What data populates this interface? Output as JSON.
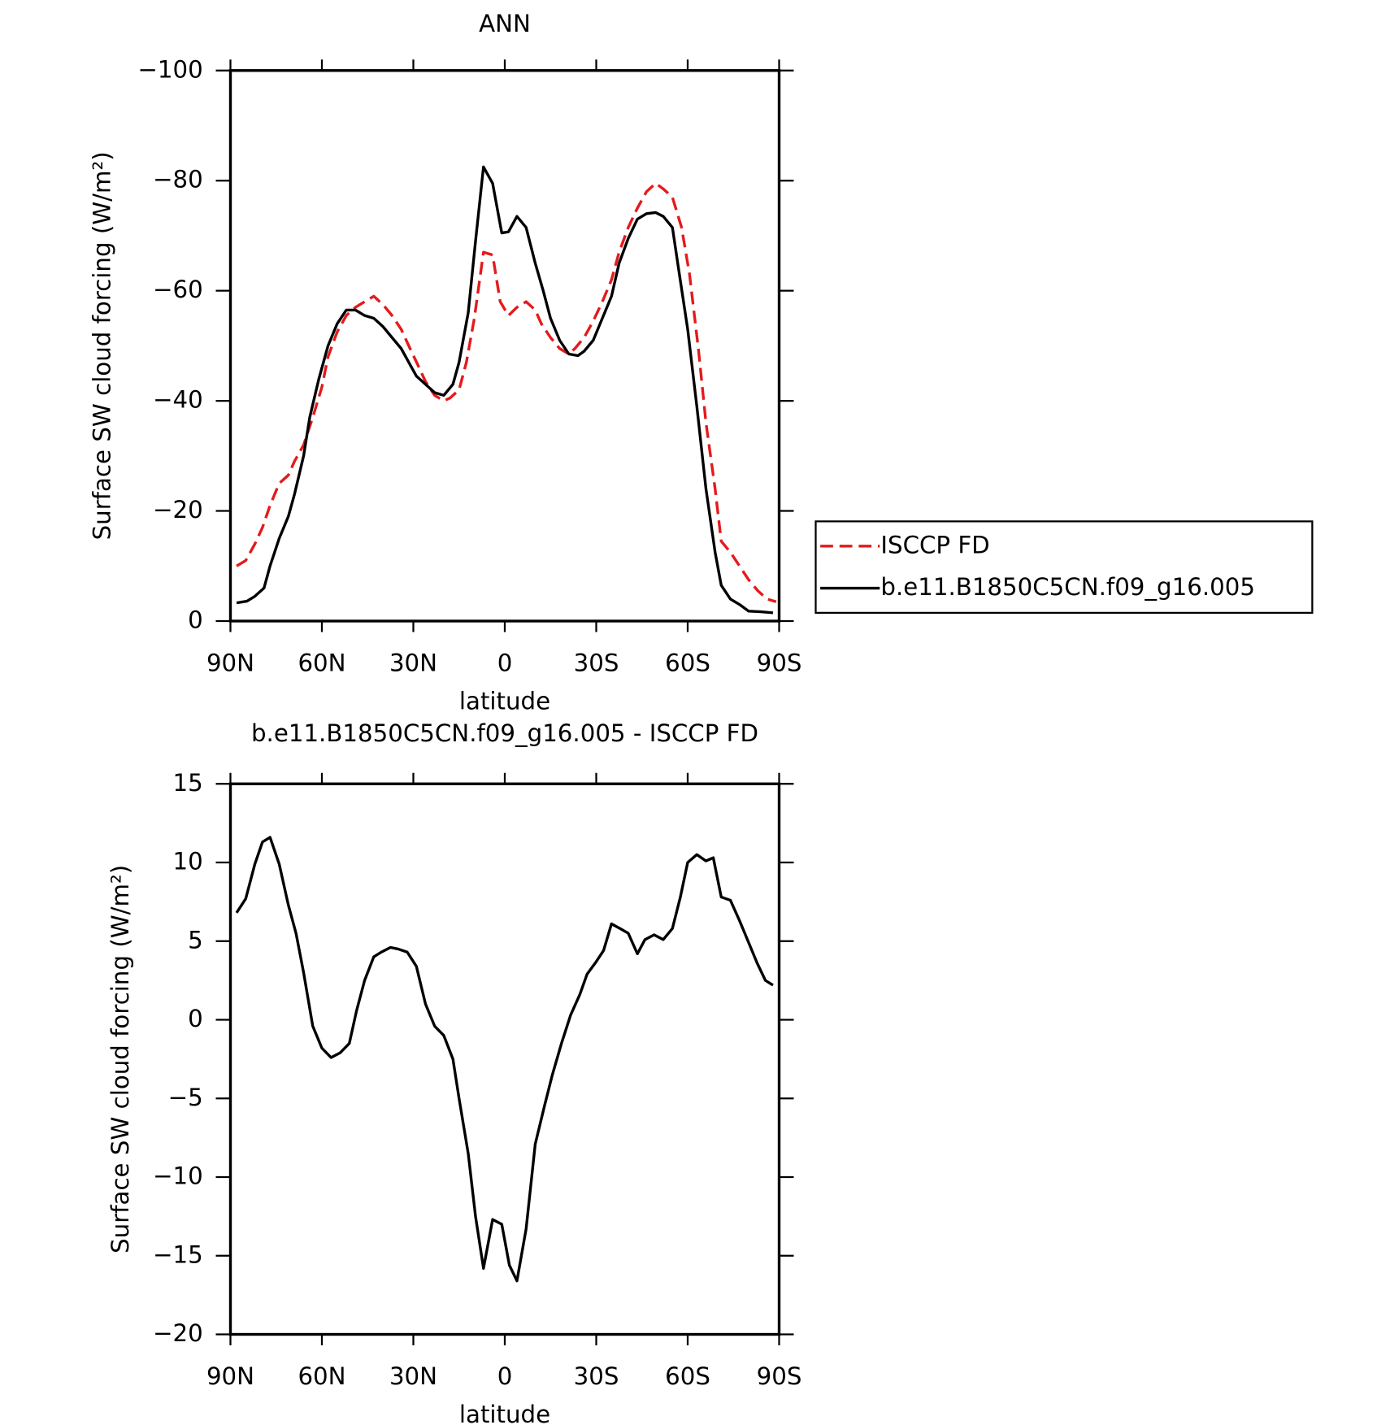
{
  "chart_data": [
    {
      "type": "line",
      "title": "ANN",
      "x_label": "latitude",
      "y_label": "Surface SW cloud forcing (W/m²)",
      "xlim": [
        90,
        -90
      ],
      "ylim": [
        0,
        -100
      ],
      "xticks": [
        {
          "value": 90,
          "label": "90N"
        },
        {
          "value": 60,
          "label": "60N"
        },
        {
          "value": 30,
          "label": "30N"
        },
        0,
        {
          "value": -30,
          "label": "30S"
        },
        {
          "value": -60,
          "label": "60S"
        },
        {
          "value": -90,
          "label": "90S"
        }
      ],
      "yticks": [
        0,
        {
          "value": -20,
          "label": "−20"
        },
        {
          "value": -40,
          "label": "−40"
        },
        {
          "value": -60,
          "label": "−60"
        },
        {
          "value": -80,
          "label": "−80"
        },
        {
          "value": -100,
          "label": "−100"
        }
      ],
      "legend": "right",
      "series": [
        {
          "name": "ISCCP FD",
          "color": "#e41a1c",
          "dashed": true,
          "x": [
            88,
            85,
            82,
            79.5,
            77,
            74,
            71,
            69,
            66,
            63,
            60,
            58,
            55,
            52,
            49,
            46,
            43,
            40,
            37,
            34,
            31.5,
            28.5,
            26,
            23,
            20,
            18,
            15,
            12.6,
            10,
            7,
            4,
            1.5,
            -1.2,
            -4,
            -7,
            -10,
            -12,
            -15,
            -18,
            -21,
            -23,
            -26,
            -29,
            -32,
            -35,
            -37.5,
            -40.5,
            -43.5,
            -46.5,
            -49.5,
            -52,
            -55,
            -58,
            -60.6,
            -63.6,
            -66,
            -69,
            -71,
            -74,
            -77,
            -80,
            -83,
            -86,
            -89
          ],
          "values": [
            -10,
            -11,
            -14,
            -17,
            -21,
            -25,
            -26.5,
            -29,
            -32,
            -37,
            -42.5,
            -48,
            -52.5,
            -55.5,
            -57,
            -58,
            -59,
            -57.5,
            -55.5,
            -53,
            -50,
            -46.5,
            -43.5,
            -41,
            -40,
            -40.5,
            -42,
            -47,
            -55,
            -67,
            -66.5,
            -58,
            -55.5,
            -57,
            -58,
            -56.5,
            -54,
            -51.5,
            -49.5,
            -48.5,
            -49.5,
            -51.5,
            -54.5,
            -58,
            -62,
            -67,
            -71.5,
            -75,
            -78,
            -79.5,
            -78.5,
            -77,
            -71.5,
            -63,
            -49,
            -36,
            -24,
            -14.5,
            -12.5,
            -10,
            -7.5,
            -5.5,
            -4,
            -3.5
          ]
        },
        {
          "name": "b.e11.B1850C5CN.f09_g16.005",
          "color": "#000000",
          "dashed": false,
          "x": [
            88,
            84.6,
            82,
            79,
            77,
            74,
            71,
            69,
            66,
            64,
            61,
            58,
            55,
            52,
            49,
            46,
            43,
            40,
            37,
            34,
            31.5,
            29,
            26,
            23,
            20,
            17,
            15,
            12,
            9.6,
            7,
            4,
            1,
            -1.2,
            -4,
            -7,
            -10,
            -12.6,
            -15,
            -18,
            -21,
            -24,
            -26,
            -29,
            -32,
            -35,
            -37.5,
            -40.5,
            -43.5,
            -46.5,
            -49.5,
            -52,
            -55,
            -57,
            -60,
            -63,
            -66,
            -69,
            -71,
            -74,
            -77,
            -80,
            -84,
            -88
          ],
          "values": [
            -3.3,
            -3.6,
            -4.5,
            -6,
            -10,
            -15,
            -19,
            -23,
            -30,
            -37,
            -44,
            -50,
            -54,
            -56.5,
            -56.5,
            -55.5,
            -55,
            -53.5,
            -51.5,
            -49.5,
            -47,
            -44.5,
            -43,
            -41.5,
            -41,
            -43,
            -47,
            -56,
            -69,
            -82.5,
            -79.5,
            -70.5,
            -70.7,
            -73.5,
            -71.5,
            -65,
            -60,
            -55,
            -51,
            -48.5,
            -48.2,
            -49,
            -51,
            -55,
            -59,
            -65,
            -69.5,
            -73,
            -74,
            -74.2,
            -73.5,
            -71.5,
            -64,
            -53,
            -39,
            -24,
            -12.5,
            -6.5,
            -4,
            -3,
            -1.8,
            -1.7,
            -1.5
          ]
        }
      ]
    },
    {
      "type": "line",
      "title": "b.e11.B1850C5CN.f09_g16.005 - ISCCP FD",
      "x_label": "latitude",
      "y_label": "Surface SW cloud forcing (W/m²)",
      "xlim": [
        90,
        -90
      ],
      "ylim": [
        -20,
        15
      ],
      "xticks": [
        {
          "value": 90,
          "label": "90N"
        },
        {
          "value": 60,
          "label": "60N"
        },
        {
          "value": 30,
          "label": "30N"
        },
        0,
        {
          "value": -30,
          "label": "30S"
        },
        {
          "value": -60,
          "label": "60S"
        },
        {
          "value": -90,
          "label": "90S"
        }
      ],
      "yticks": [
        15,
        10,
        5,
        0,
        {
          "value": -5,
          "label": "−5"
        },
        {
          "value": -10,
          "label": "−10"
        },
        {
          "value": -15,
          "label": "−15"
        },
        {
          "value": -20,
          "label": "−20"
        }
      ],
      "series": [
        {
          "color": "#000000",
          "dashed": false,
          "x": [
            88,
            85,
            82,
            79.5,
            77,
            74,
            71,
            68.5,
            66,
            63,
            60,
            57,
            54,
            51,
            48.6,
            46,
            43,
            40.5,
            37.5,
            35,
            32,
            29,
            26,
            23,
            20,
            17,
            15,
            12,
            9.6,
            7,
            4,
            1,
            -1.5,
            -4,
            -7,
            -10,
            -13,
            -15.6,
            -18.6,
            -21.6,
            -24.6,
            -27,
            -30,
            -32.4,
            -35,
            -37.8,
            -40.5,
            -43.5,
            -46,
            -49,
            -52,
            -55,
            -57.6,
            -60,
            -63,
            -66,
            -68.4,
            -71,
            -74,
            -77,
            -80,
            -82.8,
            -85.5,
            -88
          ],
          "values": [
            6.8,
            7.7,
            9.9,
            11.3,
            11.6,
            9.9,
            7.3,
            5.5,
            3,
            -0.4,
            -1.8,
            -2.4,
            -2.1,
            -1.5,
            0.6,
            2.5,
            4,
            4.3,
            4.6,
            4.5,
            4.3,
            3.4,
            1,
            -0.4,
            -1,
            -2.5,
            -5,
            -8.5,
            -12.5,
            -15.8,
            -12.7,
            -13,
            -15.6,
            -16.6,
            -13.3,
            -7.9,
            -5.5,
            -3.5,
            -1.5,
            0.3,
            1.6,
            2.9,
            3.7,
            4.4,
            6.1,
            5.8,
            5.5,
            4.2,
            5.1,
            5.4,
            5.1,
            5.8,
            7.8,
            10,
            10.5,
            10.1,
            10.3,
            7.8,
            7.6,
            6.3,
            4.9,
            3.6,
            2.5,
            2.2
          ]
        }
      ]
    }
  ]
}
